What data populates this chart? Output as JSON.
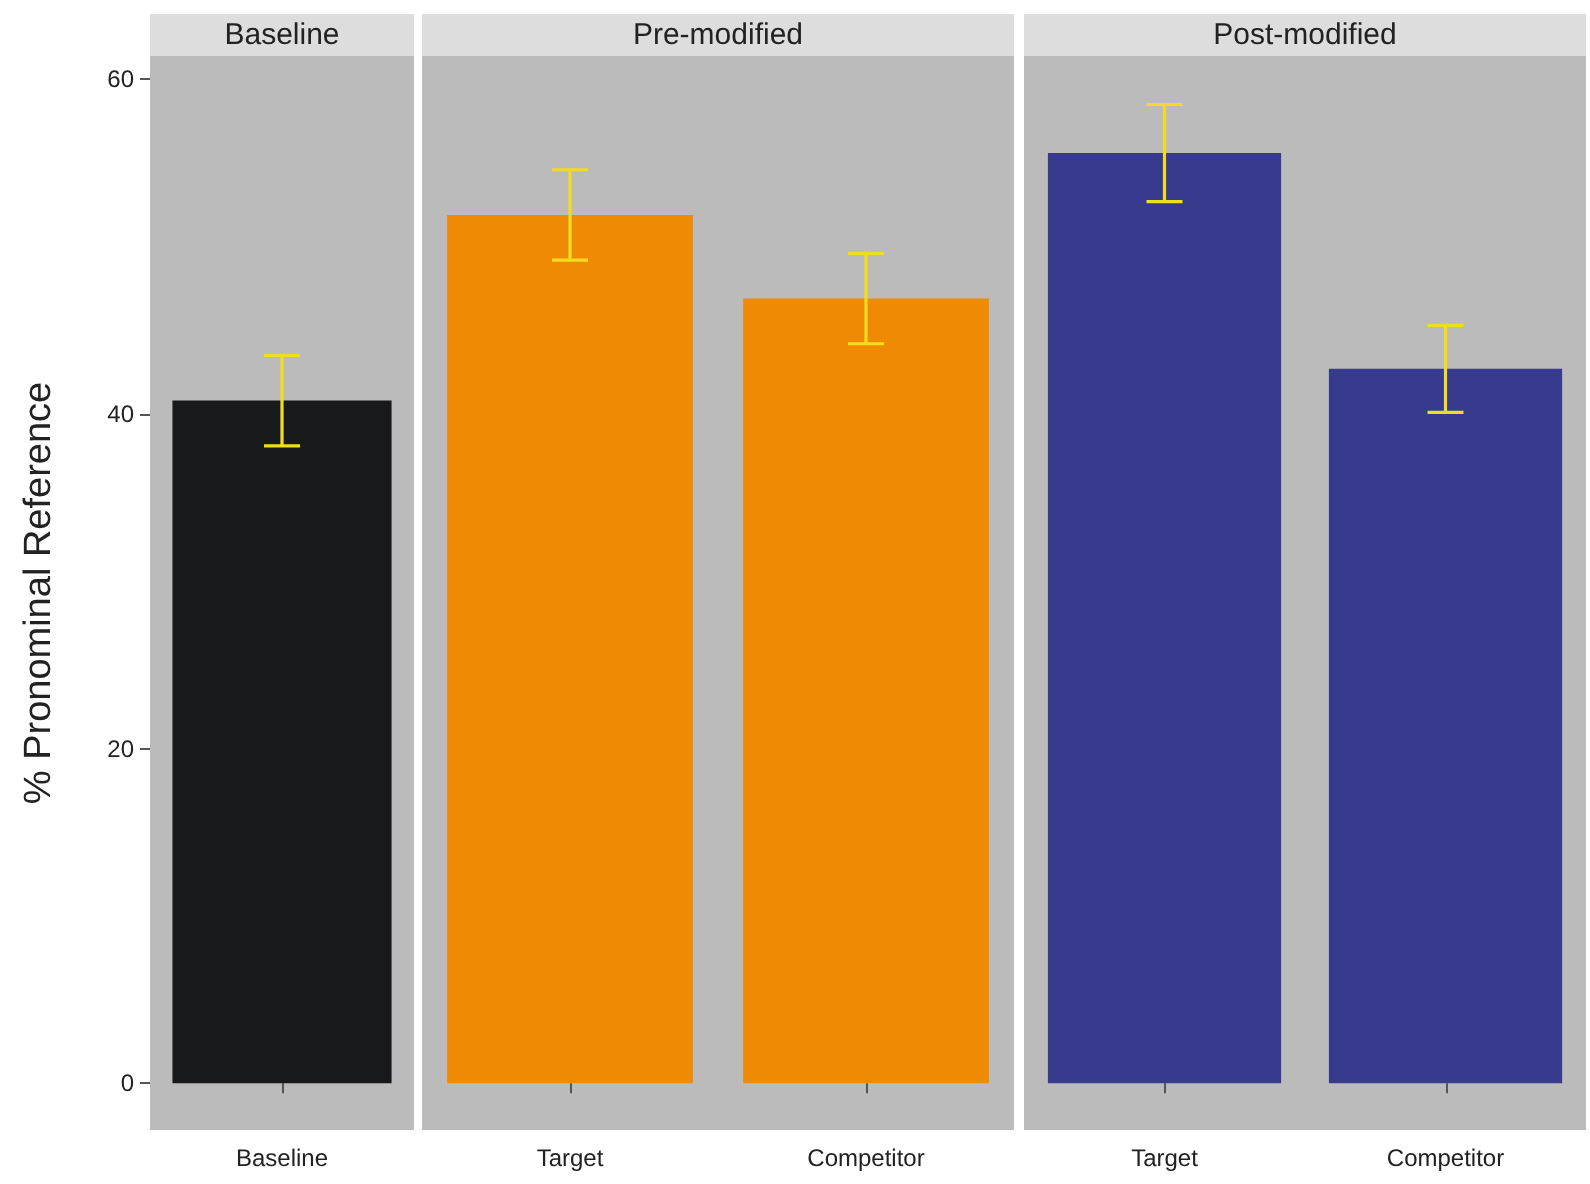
{
  "chart_data": [
    {
      "type": "bar",
      "title": "Baseline",
      "ylabel": "% Pronominal Reference",
      "categories": [
        "Baseline"
      ],
      "values": [
        40.8
      ],
      "errors": [
        2.7
      ],
      "colors": [
        "#18191b"
      ],
      "ylim": [
        -2.8,
        61.4
      ],
      "yticks": [
        0,
        20,
        40,
        60
      ],
      "grid": false
    },
    {
      "type": "bar",
      "title": "Pre-modified",
      "categories": [
        "Target",
        "Competitor"
      ],
      "values": [
        51.9,
        46.9
      ],
      "errors": [
        2.7,
        2.7
      ],
      "colors": [
        "#ee8a04",
        "#ee8a04"
      ],
      "ylim": [
        -2.8,
        61.4
      ],
      "yticks": [
        0,
        20,
        40,
        60
      ],
      "grid": false,
      "tick_labels": "x"
    },
    {
      "type": "bar",
      "title": "Post-modified",
      "categories": [
        "Target",
        "Competitor"
      ],
      "values": [
        55.6,
        42.7
      ],
      "errors": [
        2.9,
        2.6
      ],
      "colors": [
        "#383a8e",
        "#383a8e"
      ],
      "ylim": [
        -2.8,
        61.4
      ],
      "yticks": [
        0,
        20,
        40,
        60
      ],
      "grid": false,
      "tick_labels": "x"
    }
  ]
}
